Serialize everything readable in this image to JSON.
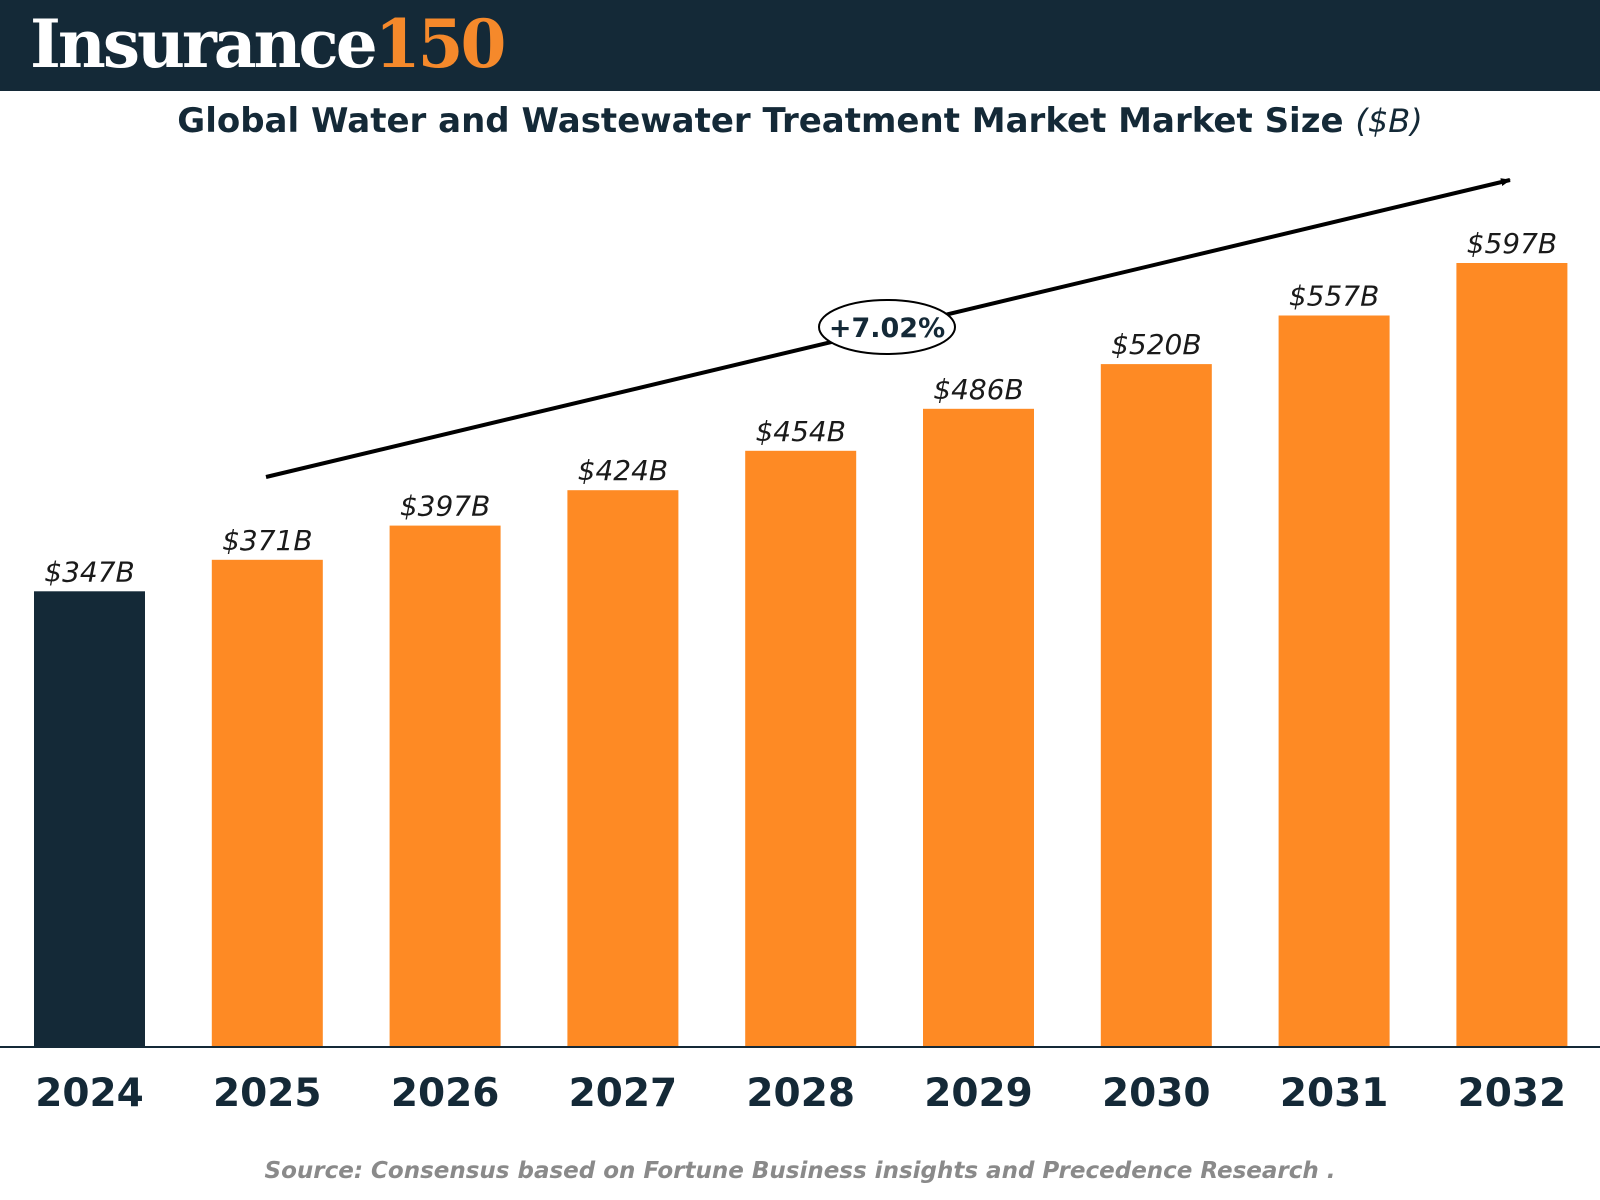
{
  "header": {
    "logo_word": "Insurance",
    "logo_number": "150"
  },
  "colors": {
    "header_bg": "#142937",
    "highlight_bar": "#142937",
    "bar": "#fe8a24",
    "logo_accent": "#f5892b",
    "source_text": "#8a8a8a"
  },
  "source": "Source: Consensus based on Fortune Business insights and Precedence Research .",
  "chart_data": {
    "type": "bar",
    "title": "Global Water and Wastewater Treatment Market Market Size",
    "title_unit": "($B)",
    "categories": [
      "2024",
      "2025",
      "2026",
      "2027",
      "2028",
      "2029",
      "2030",
      "2031",
      "2032"
    ],
    "values": [
      347,
      371,
      397,
      424,
      454,
      486,
      520,
      557,
      597
    ],
    "data_labels": [
      "$347B",
      "$371B",
      "$397B",
      "$424B",
      "$454B",
      "$486B",
      "$520B",
      "$557B",
      "$597B"
    ],
    "highlight_index": 0,
    "ylim": [
      0,
      597
    ],
    "grid": false,
    "legend": "none",
    "annotation": {
      "text": "+7.02%",
      "meaning": "growth trend arrow from 2025 to 2032"
    }
  }
}
